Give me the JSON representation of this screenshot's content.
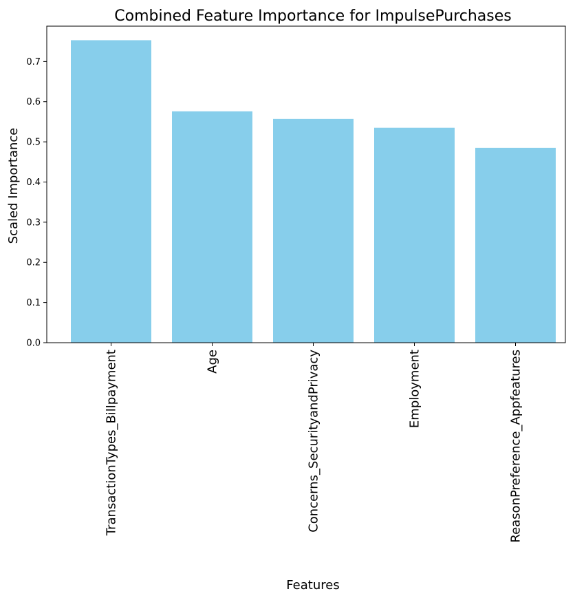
{
  "chart_data": {
    "type": "bar",
    "title": "Combined Feature Importance for ImpulsePurchases",
    "xlabel": "Features",
    "ylabel": "Scaled Importance",
    "categories": [
      "TransactionTypes_Billpayment",
      "Age",
      "Concerns_SecurityandPrivacy",
      "Employment",
      "ReasonPreference_Appfeatures"
    ],
    "values": [
      0.753,
      0.576,
      0.557,
      0.535,
      0.485
    ],
    "ylim": [
      0,
      0.788
    ],
    "yticks": [
      "0.0",
      "0.1",
      "0.2",
      "0.3",
      "0.4",
      "0.5",
      "0.6",
      "0.7"
    ],
    "bar_color": "#87CEEB",
    "grid": false,
    "legend": "none"
  }
}
